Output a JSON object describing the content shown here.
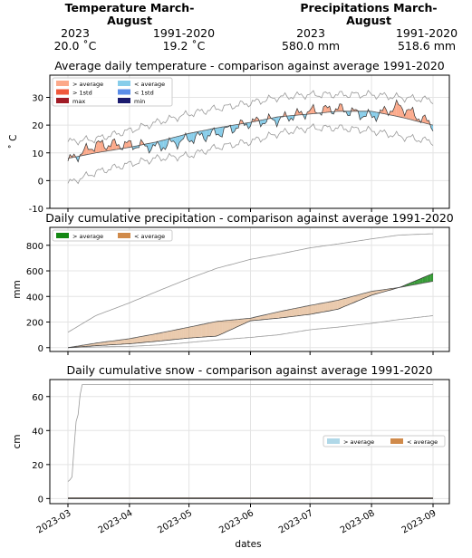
{
  "summary": {
    "temperature": {
      "title": "Temperature March-August",
      "year_label": "2023",
      "avg_label": "1991-2020",
      "year_value": "20.0 ˚C",
      "avg_value": "19.2 ˚C"
    },
    "precipitation": {
      "title": "Precipitations March-August",
      "year_label": "2023",
      "avg_label": "1991-2020",
      "year_value": "580.0 mm",
      "avg_value": "518.6 mm"
    }
  },
  "xaxis": {
    "label": "dates",
    "ticks": [
      "2023-03",
      "2023-04",
      "2023-05",
      "2023-06",
      "2023-07",
      "2023-08",
      "2023-09"
    ]
  },
  "colors": {
    "above_avg_temp": "#fca98a",
    "above_1std": "#f0583b",
    "max": "#a11b26",
    "below_avg_temp": "#87cdea",
    "below_1std": "#5a8de8",
    "min": "#1a1a6e",
    "precip_above": "#138813",
    "precip_below": "#d08a4a",
    "snow_above": "#b0d8e8",
    "snow_below": "#d08a4a"
  },
  "chart_data": [
    {
      "type": "area",
      "title": "Average daily temperature - comparison against average 1991-2020",
      "ylabel": "˚ C",
      "ylim": [
        -10,
        38
      ],
      "yticks": [
        "-10",
        "0",
        "10",
        "20",
        "30"
      ],
      "legend": [
        "> average",
        "> 1std",
        "max",
        "< average",
        "< 1std",
        "min"
      ],
      "legend_position": "upper-left",
      "grid": true,
      "x": [
        "2023-03-01",
        "2023-03-15",
        "2023-04-01",
        "2023-04-15",
        "2023-05-01",
        "2023-05-15",
        "2023-06-01",
        "2023-06-15",
        "2023-07-01",
        "2023-07-15",
        "2023-08-01",
        "2023-08-15",
        "2023-09-01"
      ],
      "series": [
        {
          "name": "2023",
          "values": [
            7,
            13,
            13,
            12,
            15,
            17,
            21,
            22,
            25,
            26,
            23,
            27,
            20
          ]
        },
        {
          "values": [
            8,
            10,
            12,
            14,
            17,
            19,
            21,
            23,
            24,
            25,
            25,
            23,
            20
          ]
        },
        {
          "values": [
            14,
            15,
            18,
            21,
            24,
            26,
            28,
            30,
            31,
            31,
            31,
            30,
            29
          ]
        },
        {
          "values": [
            -1,
            3,
            6,
            8,
            9,
            12,
            14,
            17,
            19,
            19,
            18,
            16,
            14
          ]
        }
      ]
    },
    {
      "type": "area",
      "title": "Daily cumulative precipitation - comparison against average 1991-2020",
      "ylabel": "mm",
      "ylim": [
        -30,
        940
      ],
      "yticks": [
        "0",
        "200",
        "400",
        "600",
        "800"
      ],
      "legend": [
        "> average",
        "< average"
      ],
      "legend_position": "upper-left",
      "grid": true,
      "x": [
        "2023-03-01",
        "2023-03-15",
        "2023-04-01",
        "2023-04-15",
        "2023-05-01",
        "2023-05-15",
        "2023-06-01",
        "2023-06-15",
        "2023-07-01",
        "2023-07-15",
        "2023-08-01",
        "2023-08-15",
        "2023-09-01"
      ],
      "series": [
        {
          "name": "2023",
          "values": [
            0,
            15,
            30,
            50,
            75,
            90,
            210,
            230,
            260,
            300,
            410,
            470,
            580
          ]
        },
        {
          "values": [
            0,
            35,
            70,
            110,
            160,
            205,
            230,
            280,
            330,
            370,
            440,
            470,
            519
          ]
        },
        {
          "values": [
            120,
            250,
            350,
            440,
            540,
            620,
            690,
            730,
            780,
            810,
            850,
            880,
            890
          ]
        },
        {
          "values": [
            0,
            5,
            10,
            20,
            40,
            60,
            80,
            100,
            140,
            160,
            190,
            220,
            250
          ]
        }
      ]
    },
    {
      "type": "area",
      "title": "Daily cumulative snow - comparison against average 1991-2020",
      "ylabel": "cm",
      "ylim": [
        -3,
        70
      ],
      "yticks": [
        "0",
        "20",
        "40",
        "60"
      ],
      "legend": [
        "> average",
        "< average"
      ],
      "legend_position": "right",
      "grid": true,
      "x": [
        "2023-03-01",
        "2023-03-03",
        "2023-03-05",
        "2023-03-06",
        "2023-03-07",
        "2023-03-08",
        "2023-03-10",
        "2023-03-15",
        "2023-09-01"
      ],
      "series": [
        {
          "name": "2023",
          "values": [
            0,
            0,
            0,
            0,
            0,
            0,
            0,
            0,
            0
          ]
        },
        {
          "values": [
            0.5,
            0.5,
            0.5,
            0.5,
            0.5,
            0.5,
            0.5,
            0.5,
            0.5
          ]
        },
        {
          "values": [
            10,
            12,
            45,
            48,
            60,
            67,
            67,
            67,
            67
          ]
        },
        {
          "values": [
            0,
            0,
            0,
            0,
            0,
            0,
            0,
            0,
            0
          ]
        }
      ]
    }
  ]
}
